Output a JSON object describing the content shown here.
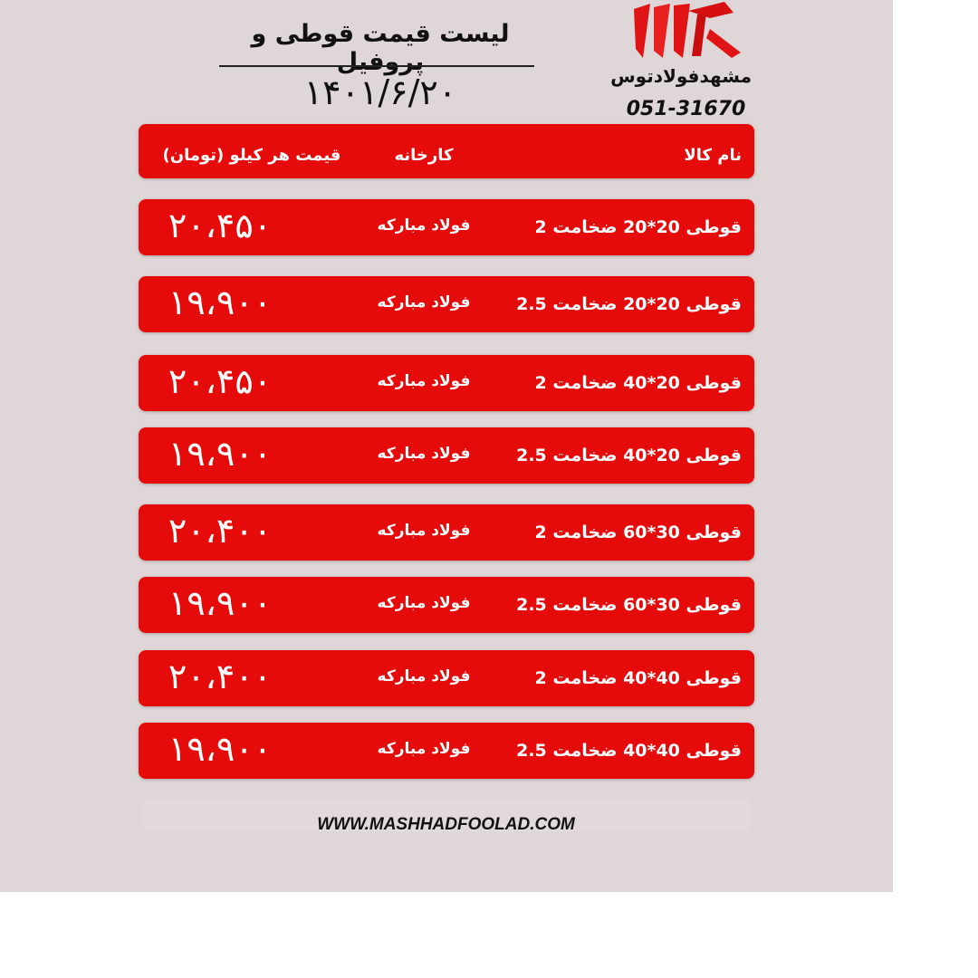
{
  "header": {
    "title": "لیست قیمت قوطی و پروفیل",
    "date": "۱۴۰۱/۶/۲۰"
  },
  "brand": {
    "name": "مشهدفولادتوس",
    "phone": "051-31670",
    "logo_color": "#e60b0b"
  },
  "table": {
    "columns": {
      "name": "نام کالا",
      "factory": "کارخانه",
      "price": "قیمت هر کیلو (تومان)"
    },
    "accent": "#e60b0b",
    "rows": [
      {
        "name": "قوطی 20*20 ضخامت 2",
        "factory": "فولاد مبارکه",
        "price": "۲۰،۴۵۰"
      },
      {
        "name": "قوطی 20*20 ضخامت 2.5",
        "factory": "فولاد مبارکه",
        "price": "۱۹،۹۰۰"
      },
      {
        "name": "قوطی 20*40 ضخامت 2",
        "factory": "فولاد مبارکه",
        "price": "۲۰،۴۵۰"
      },
      {
        "name": "قوطی 20*40 ضخامت 2.5",
        "factory": "فولاد مبارکه",
        "price": "۱۹،۹۰۰"
      },
      {
        "name": "قوطی 30*60 ضخامت 2",
        "factory": "فولاد مبارکه",
        "price": "۲۰،۴۰۰"
      },
      {
        "name": "قوطی 30*60 ضخامت 2.5",
        "factory": "فولاد مبارکه",
        "price": "۱۹،۹۰۰"
      },
      {
        "name": "قوطی 40*40 ضخامت 2",
        "factory": "فولاد مبارکه",
        "price": "۲۰،۴۰۰"
      },
      {
        "name": "قوطی 40*40 ضخامت 2.5",
        "factory": "فولاد مبارکه",
        "price": "۱۹،۹۰۰"
      }
    ]
  },
  "footer": {
    "url": "WWW.MASHHADFOOLAD.COM"
  }
}
